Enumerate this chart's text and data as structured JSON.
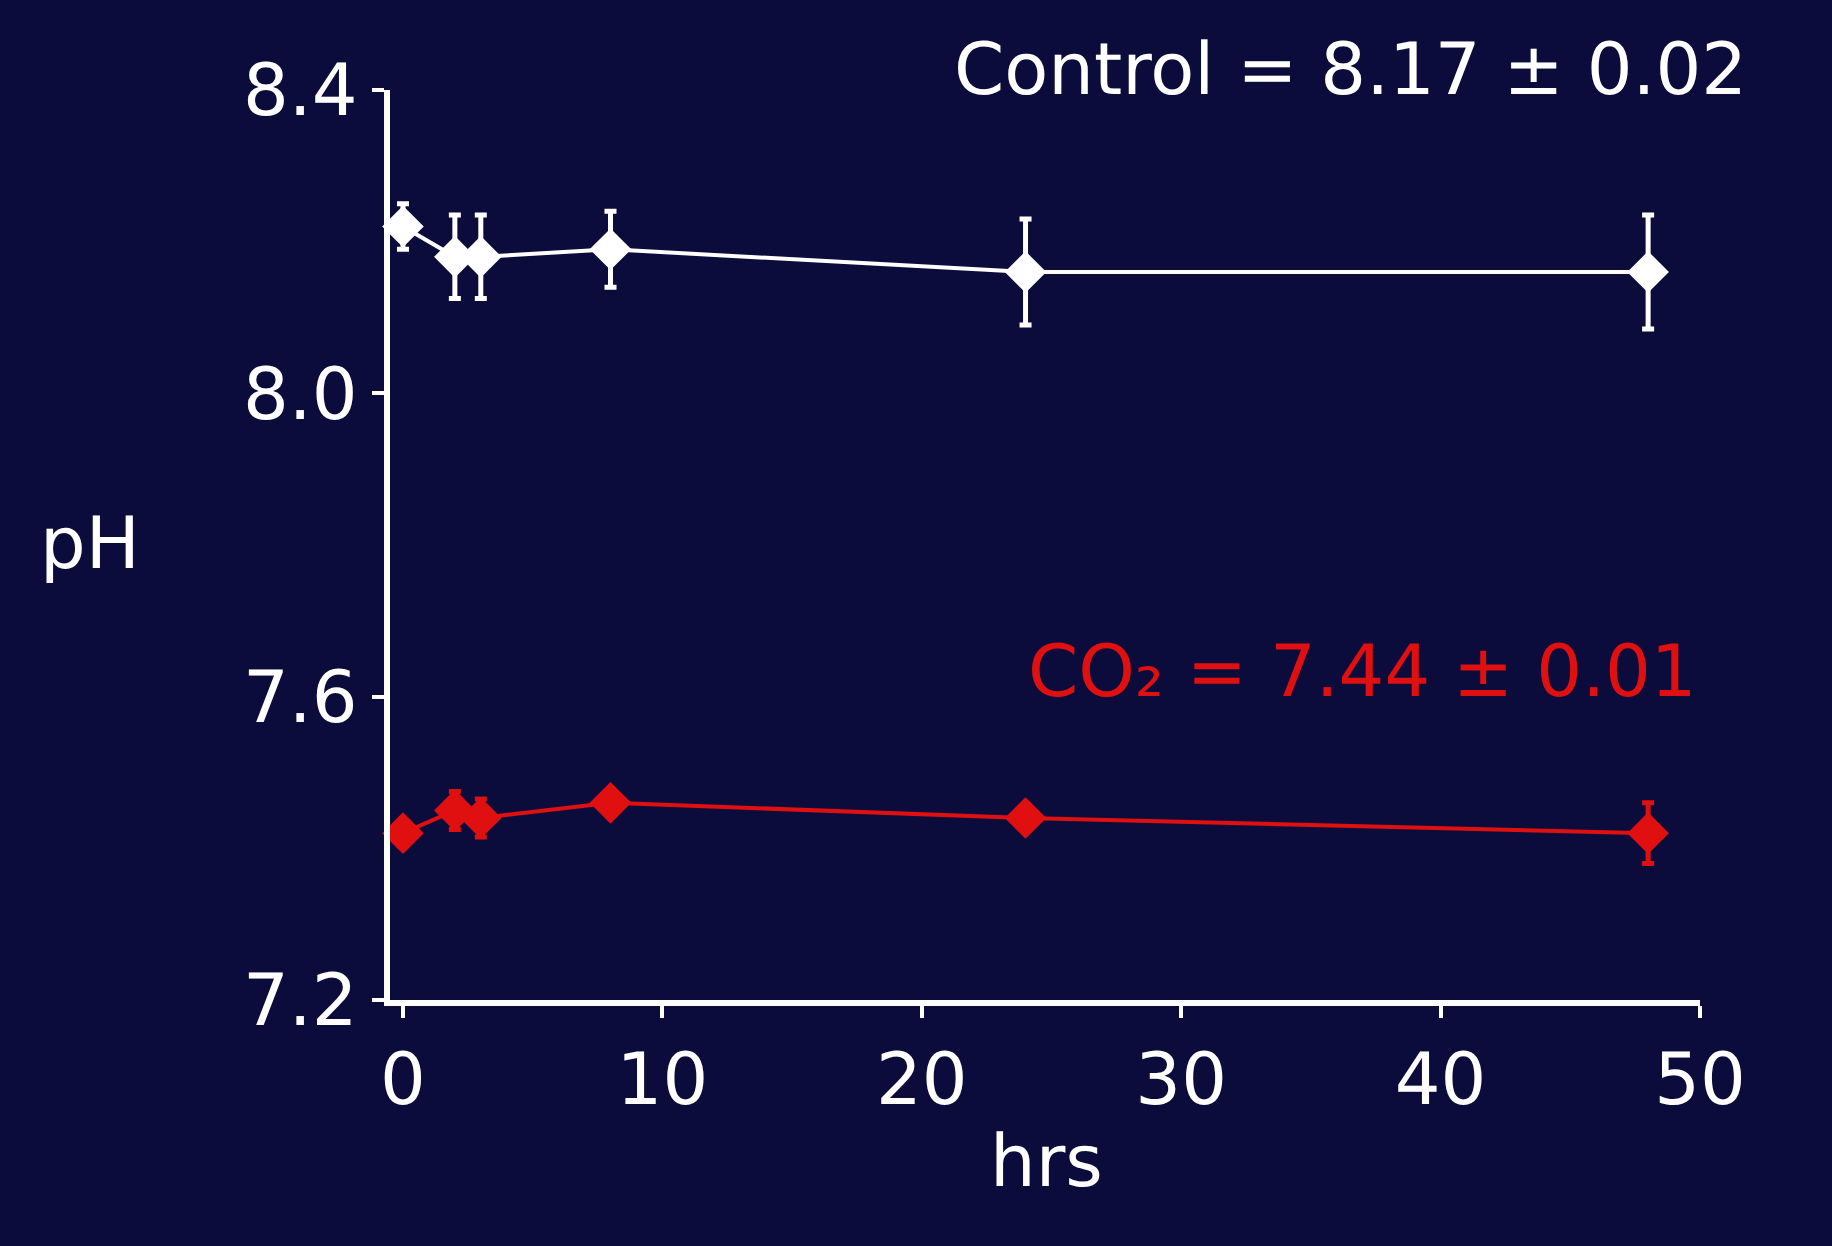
{
  "chart_data": {
    "type": "line",
    "xlabel": "hrs",
    "ylabel": "pH",
    "annotations": [
      "Control = 8.17 ± 0.02",
      "CO₂ = 7.44 ± 0.01"
    ],
    "series": [
      {
        "color": "#ffffff",
        "x": [
          0,
          2,
          3,
          8,
          24,
          48
        ],
        "values": [
          8.22,
          8.18,
          8.18,
          8.19,
          8.16,
          8.16
        ],
        "errors": [
          0.03,
          0.055,
          0.055,
          0.05,
          0.07,
          0.075
        ]
      },
      {
        "color": "#e01010",
        "x": [
          0,
          2,
          3,
          8,
          24,
          48
        ],
        "values": [
          7.42,
          7.45,
          7.44,
          7.46,
          7.44,
          7.42
        ],
        "errors": [
          null,
          0.025,
          0.025,
          null,
          null,
          0.04
        ]
      }
    ],
    "xlim": [
      -0.5,
      50
    ],
    "xticks": [
      0,
      10,
      20,
      30,
      40,
      50
    ],
    "ylim": [
      7.2,
      8.4
    ],
    "yticks": [
      7.2,
      7.6,
      {
        "value": 8,
        "label": "8.0"
      },
      8.4
    ],
    "grid": false,
    "marker": "diamond",
    "line_style": "solid"
  }
}
